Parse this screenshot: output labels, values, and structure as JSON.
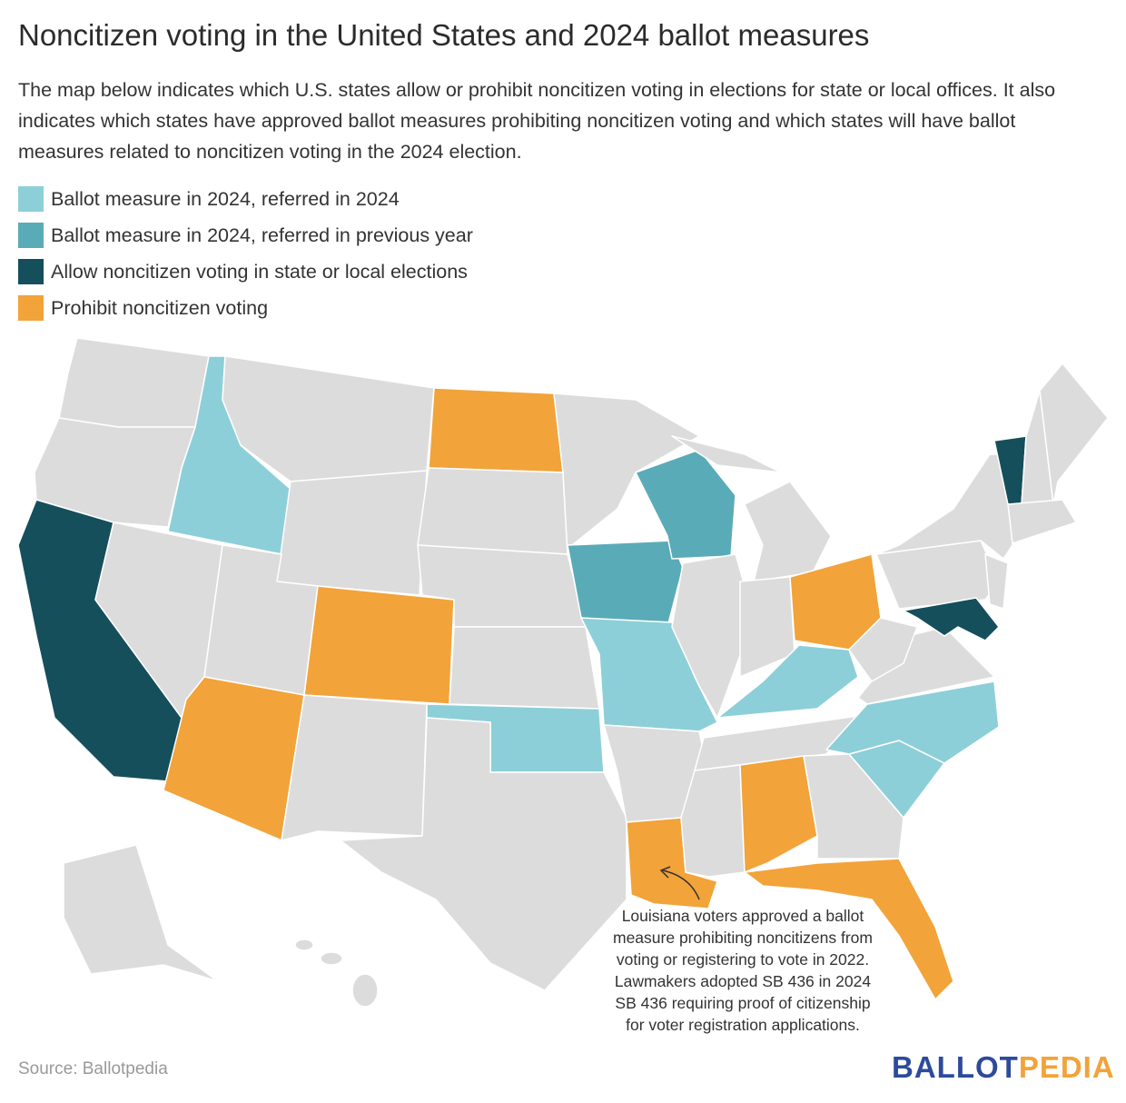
{
  "title": "Noncitizen voting in the United States and 2024 ballot measures",
  "description": "The map below indicates which U.S. states allow or prohibit noncitizen voting in elections for state or local offices. It also indicates which states have approved ballot measures prohibiting noncitizen voting and which states will have ballot measures related to noncitizen voting in the 2024 election.",
  "legend": [
    {
      "label": "Ballot measure in 2024, referred in 2024",
      "color": "#8dcfd8"
    },
    {
      "label": "Ballot measure in 2024, referred in previous year",
      "color": "#5aabb8"
    },
    {
      "label": "Allow noncitizen voting in state or local elections",
      "color": "#154f5b"
    },
    {
      "label": "Prohibit noncitizen voting",
      "color": "#f2a33a"
    }
  ],
  "annotation": "Louisiana voters approved a ballot measure prohibiting noncitizens from voting or registering to vote in 2022. Lawmakers adopted SB 436 in 2024 SB 436 requiring proof of citizenship for voter registration applications.",
  "source": "Source: Ballotpedia",
  "logo": [
    "BALLOT",
    "PEDIA"
  ]
}
